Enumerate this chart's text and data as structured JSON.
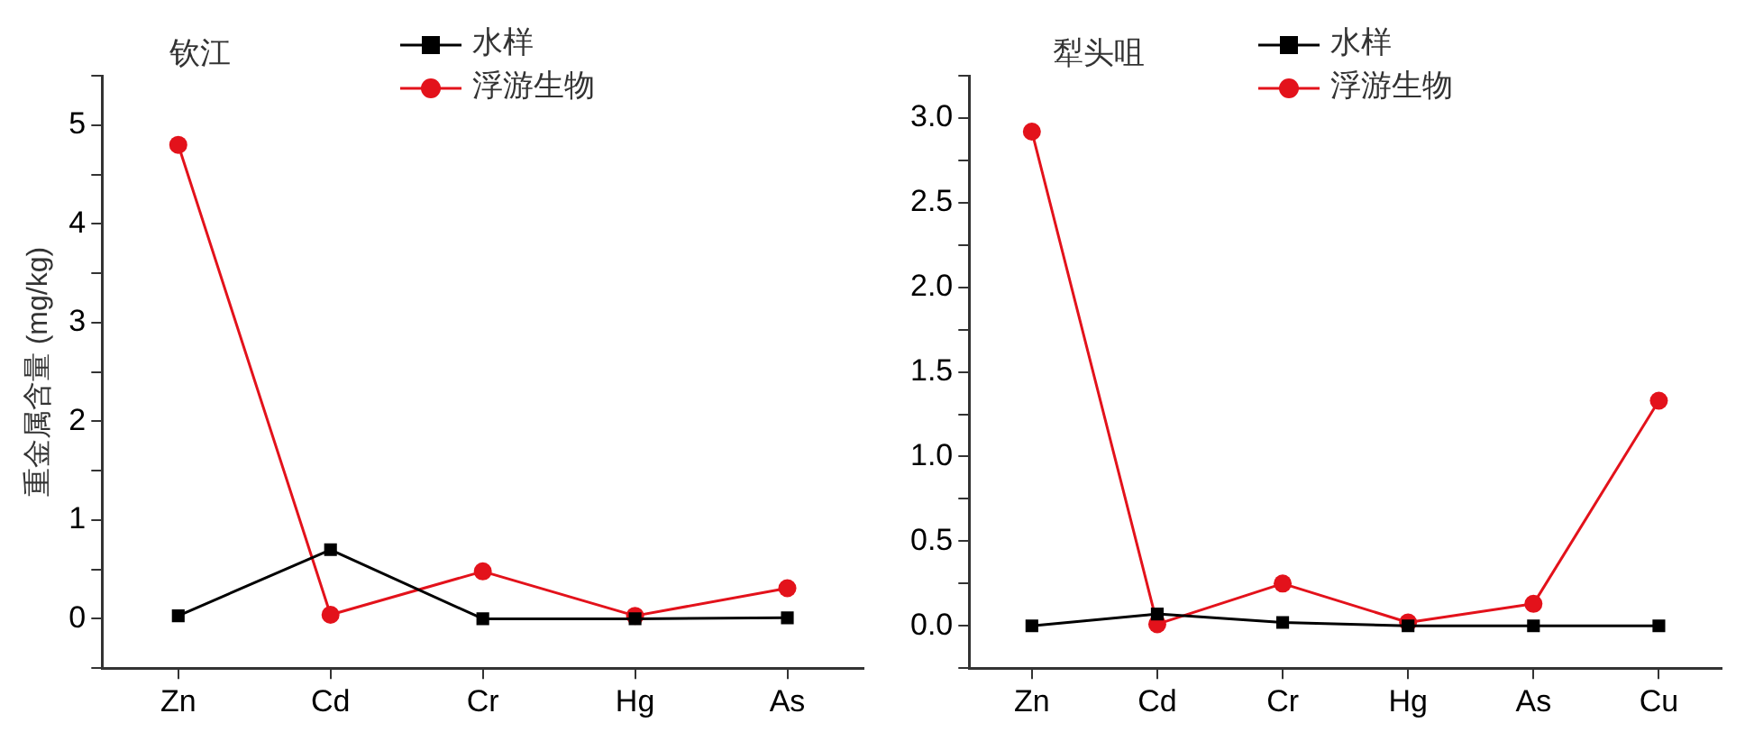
{
  "chart_data": [
    {
      "type": "line",
      "title": "钦江",
      "ylabel": "重金属含量 (mg/kg)",
      "categories": [
        "Zn",
        "Cd",
        "Cr",
        "Hg",
        "As"
      ],
      "series": [
        {
          "name": "水样",
          "color": "#000000",
          "marker": "square",
          "values": [
            0.03,
            0.7,
            0,
            0,
            0.01
          ]
        },
        {
          "name": "浮游生物",
          "color": "#e3121b",
          "marker": "circle",
          "values": [
            4.8,
            0.04,
            0.48,
            0.03,
            0.31
          ]
        }
      ],
      "ylim": [
        -0.5,
        5.5
      ],
      "yticks": [
        {
          "value": -0.5,
          "label": null
        },
        0,
        {
          "value": 0.5,
          "label": null
        },
        1,
        {
          "value": 1.5,
          "label": null
        },
        2,
        {
          "value": 2.5,
          "label": null
        },
        3,
        {
          "value": 3.5,
          "label": null
        },
        4,
        {
          "value": 4.5,
          "label": null
        },
        5,
        {
          "value": 5.5,
          "label": null
        }
      ],
      "grid": false,
      "legend": "top",
      "line_style": "solid"
    },
    {
      "type": "line",
      "title": "犁头咀",
      "categories": [
        "Zn",
        "Cd",
        "Cr",
        "Hg",
        "As",
        "Cu"
      ],
      "series": [
        {
          "name": "水样",
          "color": "#000000",
          "marker": "square",
          "values": [
            0,
            0.07,
            0.02,
            0,
            0,
            0
          ]
        },
        {
          "name": "浮游生物",
          "color": "#e3121b",
          "marker": "circle",
          "values": [
            2.92,
            0.01,
            0.25,
            0.02,
            0.13,
            1.33
          ]
        }
      ],
      "ylim": [
        -0.25,
        3.25
      ],
      "yticks": [
        {
          "value": -0.25,
          "label": null
        },
        {
          "value": 0,
          "label": "0.0"
        },
        {
          "value": 0.25,
          "label": null
        },
        {
          "value": 0.5,
          "label": "0.5"
        },
        {
          "value": 0.75,
          "label": null
        },
        {
          "value": 1,
          "label": "1.0"
        },
        {
          "value": 1.25,
          "label": null
        },
        {
          "value": 1.5,
          "label": "1.5"
        },
        {
          "value": 1.75,
          "label": null
        },
        {
          "value": 2,
          "label": "2.0"
        },
        {
          "value": 2.25,
          "label": null
        },
        {
          "value": 2.5,
          "label": "2.5"
        },
        {
          "value": 2.75,
          "label": null
        },
        {
          "value": 3,
          "label": "3.0"
        },
        {
          "value": 3.25,
          "label": null
        }
      ],
      "grid": false,
      "legend": "top",
      "line_style": "solid"
    }
  ]
}
